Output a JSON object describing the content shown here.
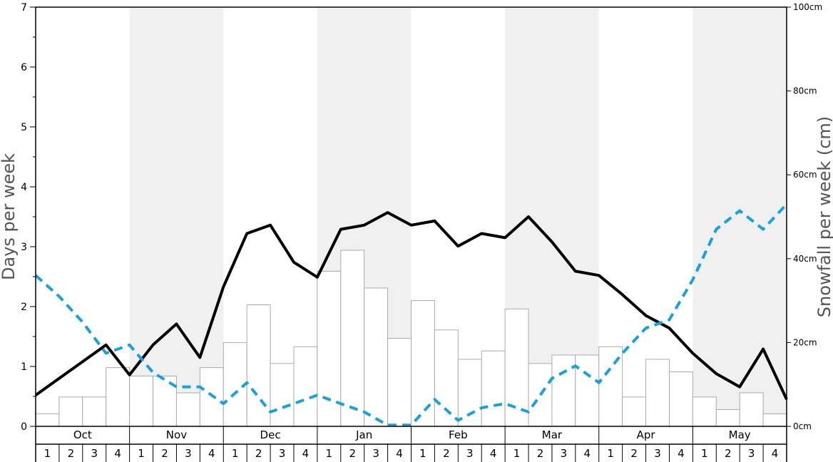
{
  "chart_data": {
    "type": "bar",
    "months": [
      "Oct",
      "Nov",
      "Dec",
      "Jan",
      "Feb",
      "Mar",
      "Apr",
      "May"
    ],
    "weeks": [
      "1",
      "2",
      "3",
      "4"
    ],
    "ylabel": "Days per week",
    "y2label": "Snowfall per week (cm)",
    "ylim": [
      0,
      7
    ],
    "y_ticks": [
      "0",
      "1",
      "2",
      "3",
      "4",
      "5",
      "6",
      "7"
    ],
    "y2lim": [
      0,
      100
    ],
    "y2_ticks": [
      "0cm",
      "20cm",
      "40cm",
      "60cm",
      "80cm",
      "100cm"
    ],
    "grid": false,
    "shaded_months": [
      "Nov",
      "Jan",
      "Mar",
      "May"
    ],
    "colors": {
      "bar_fill": "#ffffff",
      "bar_stroke": "#aaaaaa",
      "solid_line": "#000000",
      "dashed_line": "#1aa0e0",
      "shade": "#f0f0f0",
      "axis": "#000000",
      "axis_label": "#555555"
    },
    "series": [
      {
        "type": "bar",
        "axis": "right",
        "values": [
          3,
          7,
          7,
          14,
          12,
          12,
          8,
          14,
          20,
          29,
          15,
          19,
          37,
          42,
          33,
          21,
          30,
          23,
          16,
          18,
          28,
          15,
          17,
          17,
          19,
          7,
          16,
          13,
          7,
          4,
          8,
          3
        ]
      },
      {
        "type": "line",
        "style": "solid",
        "axis": "left",
        "values": [
          0.52,
          0.8,
          1.08,
          1.36,
          0.86,
          1.36,
          1.71,
          1.15,
          2.33,
          3.22,
          3.36,
          2.74,
          2.49,
          3.29,
          3.36,
          3.57,
          3.36,
          3.43,
          3.01,
          3.22,
          3.15,
          3.5,
          3.08,
          2.59,
          2.52,
          2.2,
          1.85,
          1.64,
          1.22,
          0.88,
          0.66,
          1.29,
          0.45
        ]
      },
      {
        "type": "line",
        "style": "dashed",
        "axis": "left",
        "values": [
          2.52,
          2.17,
          1.74,
          1.22,
          1.36,
          0.9,
          0.66,
          0.66,
          0.38,
          0.73,
          0.24,
          0.38,
          0.52,
          0.38,
          0.24,
          0.02,
          0.02,
          0.45,
          0.1,
          0.31,
          0.38,
          0.24,
          0.8,
          1.01,
          0.73,
          1.22,
          1.64,
          1.78,
          2.45,
          3.29,
          3.6,
          3.29,
          3.71
        ]
      }
    ]
  }
}
